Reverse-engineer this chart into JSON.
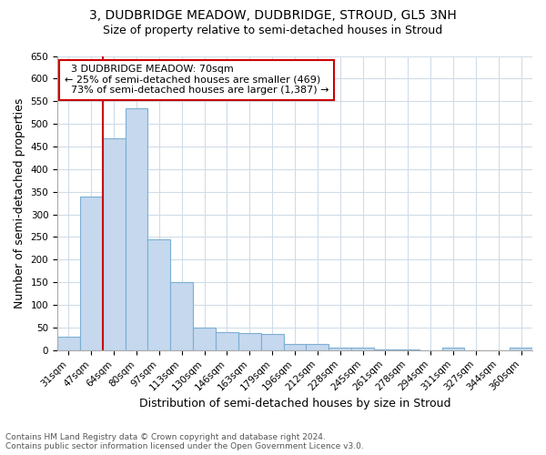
{
  "title": "3, DUDBRIDGE MEADOW, DUDBRIDGE, STROUD, GL5 3NH",
  "subtitle": "Size of property relative to semi-detached houses in Stroud",
  "xlabel": "Distribution of semi-detached houses by size in Stroud",
  "ylabel": "Number of semi-detached properties",
  "categories": [
    "31sqm",
    "47sqm",
    "64sqm",
    "80sqm",
    "97sqm",
    "113sqm",
    "130sqm",
    "146sqm",
    "163sqm",
    "179sqm",
    "196sqm",
    "212sqm",
    "228sqm",
    "245sqm",
    "261sqm",
    "278sqm",
    "294sqm",
    "311sqm",
    "327sqm",
    "344sqm",
    "360sqm"
  ],
  "values": [
    30,
    340,
    469,
    535,
    245,
    150,
    50,
    40,
    37,
    35,
    13,
    13,
    5,
    5,
    2,
    2,
    0,
    6,
    0,
    0,
    6
  ],
  "bar_color": "#c5d8ee",
  "bar_edge_color": "#7bafd4",
  "marker_bar_index": 2,
  "marker_label": "3 DUDBRIDGE MEADOW: 70sqm",
  "marker_smaller_pct": "25%",
  "marker_smaller_n": "469",
  "marker_larger_pct": "73%",
  "marker_larger_n": "1,387",
  "annotation_line_color": "#cc0000",
  "annotation_box_edge_color": "#cc0000",
  "ylim": [
    0,
    650
  ],
  "yticks": [
    0,
    50,
    100,
    150,
    200,
    250,
    300,
    350,
    400,
    450,
    500,
    550,
    600,
    650
  ],
  "footer_line1": "Contains HM Land Registry data © Crown copyright and database right 2024.",
  "footer_line2": "Contains public sector information licensed under the Open Government Licence v3.0.",
  "bg_color": "#ffffff",
  "plot_bg_color": "#ffffff",
  "grid_color": "#d0dce8",
  "title_fontsize": 10,
  "subtitle_fontsize": 9,
  "axis_label_fontsize": 9,
  "tick_fontsize": 7.5
}
